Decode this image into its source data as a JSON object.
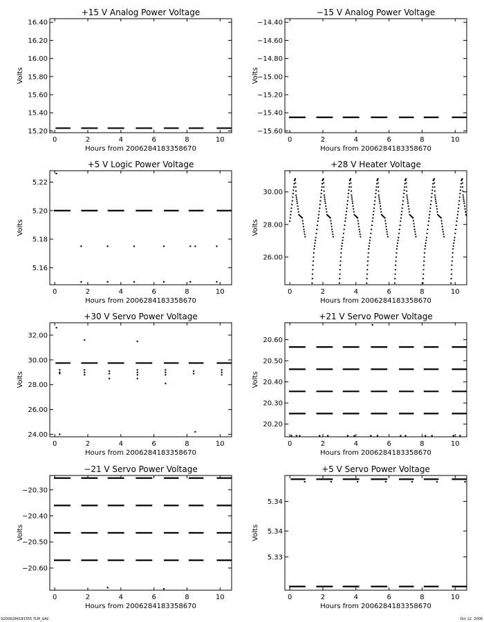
{
  "footer": {
    "left": "S2D06284183355.TLM_GAC",
    "right": "Oct 12, 2006"
  },
  "chart_data": [
    {
      "type": "scatter",
      "title": "+15 V Analog Power Voltage",
      "xlabel": "Hours from 2006284183358670",
      "ylabel": "Volts",
      "xlim": [
        -0.3,
        10.7
      ],
      "ylim": [
        15.18,
        16.44
      ],
      "xticks": [
        0,
        2,
        4,
        6,
        8,
        10
      ],
      "yticks": [
        15.2,
        15.4,
        15.6,
        15.8,
        16.0,
        16.2,
        16.4
      ],
      "ytick_labels": [
        "15.20",
        "15.40",
        "15.60",
        "15.80",
        "16.00",
        "16.20",
        "16.40"
      ],
      "grid": false,
      "segments": [
        {
          "x0": 0.05,
          "x1": 0.95,
          "y": 15.23
        },
        {
          "x0": 1.6,
          "x1": 2.6,
          "y": 15.23
        },
        {
          "x0": 3.2,
          "x1": 4.2,
          "y": 15.23
        },
        {
          "x0": 4.9,
          "x1": 5.9,
          "y": 15.23
        },
        {
          "x0": 6.6,
          "x1": 7.5,
          "y": 15.23
        },
        {
          "x0": 8.1,
          "x1": 9.0,
          "y": 15.23
        },
        {
          "x0": 9.8,
          "x1": 10.7,
          "y": 15.23
        }
      ],
      "points": []
    },
    {
      "type": "scatter",
      "title": "−15 V Analog Power Voltage",
      "xlabel": "Hours from 2006284183358670",
      "ylabel": "Volts",
      "xlim": [
        -0.3,
        10.7
      ],
      "ylim": [
        -15.62,
        -14.36
      ],
      "xticks": [
        0,
        2,
        4,
        6,
        8,
        10
      ],
      "yticks": [
        -15.6,
        -15.4,
        -15.2,
        -15.0,
        -14.8,
        -14.6,
        -14.4
      ],
      "ytick_labels": [
        "−15.60",
        "−15.40",
        "−15.20",
        "−15.00",
        "−14.80",
        "−14.60",
        "−14.40"
      ],
      "grid": false,
      "segments": [
        {
          "x0": -0.05,
          "x1": 0.95,
          "y": -15.45
        },
        {
          "x0": 1.6,
          "x1": 2.6,
          "y": -15.45
        },
        {
          "x0": 3.2,
          "x1": 4.2,
          "y": -15.45
        },
        {
          "x0": 4.9,
          "x1": 5.9,
          "y": -15.45
        },
        {
          "x0": 6.6,
          "x1": 7.5,
          "y": -15.45
        },
        {
          "x0": 8.1,
          "x1": 9.0,
          "y": -15.45
        },
        {
          "x0": 9.8,
          "x1": 10.7,
          "y": -15.45
        }
      ],
      "points": []
    },
    {
      "type": "scatter",
      "title": "+5 V Logic Power Voltage",
      "xlabel": "Hours from 2006284183358670",
      "ylabel": "Volts",
      "xlim": [
        -0.3,
        10.7
      ],
      "ylim": [
        5.148,
        5.228
      ],
      "xticks": [
        0,
        2,
        4,
        6,
        8,
        10
      ],
      "yticks": [
        5.16,
        5.18,
        5.2,
        5.22
      ],
      "ytick_labels": [
        "5.16",
        "5.18",
        "5.20",
        "5.22"
      ],
      "grid": false,
      "segments": [
        {
          "x0": -0.05,
          "x1": 0.95,
          "y": 5.2
        },
        {
          "x0": 1.6,
          "x1": 2.6,
          "y": 5.2
        },
        {
          "x0": 3.2,
          "x1": 4.2,
          "y": 5.2
        },
        {
          "x0": 4.9,
          "x1": 5.9,
          "y": 5.2
        },
        {
          "x0": 6.6,
          "x1": 7.5,
          "y": 5.2
        },
        {
          "x0": 8.1,
          "x1": 9.0,
          "y": 5.2
        },
        {
          "x0": 9.8,
          "x1": 10.7,
          "y": 5.2
        }
      ],
      "points": [
        {
          "x": 0.1,
          "y": 5.226
        },
        {
          "x": 1.6,
          "y": 5.175
        },
        {
          "x": 3.2,
          "y": 5.175
        },
        {
          "x": 4.8,
          "y": 5.175
        },
        {
          "x": 6.6,
          "y": 5.175
        },
        {
          "x": 8.2,
          "y": 5.175
        },
        {
          "x": 8.5,
          "y": 5.175
        },
        {
          "x": 9.8,
          "y": 5.175
        },
        {
          "x": 1.6,
          "y": 5.15
        },
        {
          "x": 3.2,
          "y": 5.15
        },
        {
          "x": 4.8,
          "y": 5.15
        },
        {
          "x": 6.6,
          "y": 5.15
        },
        {
          "x": 8.2,
          "y": 5.15
        },
        {
          "x": 9.8,
          "y": 5.15
        }
      ]
    },
    {
      "type": "scatter",
      "title": "+28 V Heater Voltage",
      "xlabel": "Hours from 2006284183358670",
      "ylabel": "Volts",
      "xlim": [
        -0.3,
        10.7
      ],
      "ylim": [
        24.3,
        31.3
      ],
      "xticks": [
        0,
        2,
        4,
        6,
        8,
        10
      ],
      "yticks": [
        26.0,
        28.0,
        30.0
      ],
      "ytick_labels": [
        "26.00",
        "28.00",
        "30.00"
      ],
      "grid": false,
      "segments": [],
      "cycle_starts": [
        0.0,
        1.7,
        3.35,
        5.0,
        6.7,
        8.4,
        10.1
      ],
      "cycle_curve": [
        {
          "dx": 0.0,
          "y": 28.2
        },
        {
          "dx": 0.1,
          "y": 29.0
        },
        {
          "dx": 0.2,
          "y": 29.9
        },
        {
          "dx": 0.28,
          "y": 30.7
        },
        {
          "dx": 0.33,
          "y": 30.8
        },
        {
          "dx": 0.38,
          "y": 29.8
        },
        {
          "dx": 0.45,
          "y": 29.3
        },
        {
          "dx": 0.55,
          "y": 28.6
        },
        {
          "dx": 0.75,
          "y": 28.4
        },
        {
          "dx": 0.85,
          "y": 27.7
        },
        {
          "dx": 0.95,
          "y": 27.1
        }
      ],
      "rise_curve": [
        {
          "dx": 0.0,
          "y": 24.4
        },
        {
          "dx": 0.05,
          "y": 25.5
        },
        {
          "dx": 0.12,
          "y": 26.5
        },
        {
          "dx": 0.22,
          "y": 27.2
        },
        {
          "dx": 0.35,
          "y": 28.2
        }
      ],
      "points": []
    },
    {
      "type": "scatter",
      "title": "+30 V Servo Power Voltage",
      "xlabel": "Hours from 2006284183358670",
      "ylabel": "Volts",
      "xlim": [
        -0.3,
        10.7
      ],
      "ylim": [
        23.8,
        33.0
      ],
      "xticks": [
        0,
        2,
        4,
        6,
        8,
        10
      ],
      "yticks": [
        24.0,
        26.0,
        28.0,
        30.0,
        32.0
      ],
      "ytick_labels": [
        "24.00",
        "26.00",
        "28.00",
        "30.00",
        "32.00"
      ],
      "grid": false,
      "segments": [
        {
          "x0": 0.05,
          "x1": 0.95,
          "y": 29.75
        },
        {
          "x0": 1.6,
          "x1": 2.6,
          "y": 29.75
        },
        {
          "x0": 3.2,
          "x1": 4.2,
          "y": 29.75
        },
        {
          "x0": 4.9,
          "x1": 5.9,
          "y": 29.75
        },
        {
          "x0": 6.6,
          "x1": 7.5,
          "y": 29.75
        },
        {
          "x0": 8.1,
          "x1": 9.0,
          "y": 29.75
        },
        {
          "x0": 9.8,
          "x1": 10.7,
          "y": 29.75
        }
      ],
      "points": [
        {
          "x": 0.1,
          "y": 32.6
        },
        {
          "x": 1.8,
          "y": 31.6
        },
        {
          "x": 5.0,
          "y": 31.5
        },
        {
          "x": 0.3,
          "y": 24.0
        },
        {
          "x": 8.5,
          "y": 24.2
        },
        {
          "x": 6.7,
          "y": 28.1
        },
        {
          "x": 3.3,
          "y": 28.5
        },
        {
          "x": 5.0,
          "y": 28.5
        },
        {
          "x": 0.3,
          "y": 29.2
        },
        {
          "x": 0.3,
          "y": 29.0
        },
        {
          "x": 0.3,
          "y": 28.9
        },
        {
          "x": 1.8,
          "y": 29.2
        },
        {
          "x": 1.8,
          "y": 29.0
        },
        {
          "x": 1.8,
          "y": 28.8
        },
        {
          "x": 3.3,
          "y": 29.1
        },
        {
          "x": 3.3,
          "y": 28.9
        },
        {
          "x": 5.0,
          "y": 29.2
        },
        {
          "x": 5.0,
          "y": 29.0
        },
        {
          "x": 5.0,
          "y": 28.8
        },
        {
          "x": 6.7,
          "y": 29.2
        },
        {
          "x": 6.7,
          "y": 29.0
        },
        {
          "x": 6.7,
          "y": 28.8
        },
        {
          "x": 8.4,
          "y": 29.1
        },
        {
          "x": 8.4,
          "y": 28.9
        },
        {
          "x": 10.1,
          "y": 29.2
        },
        {
          "x": 10.1,
          "y": 29.0
        },
        {
          "x": 10.1,
          "y": 28.8
        }
      ]
    },
    {
      "type": "scatter",
      "title": "+21 V Servo Power Voltage",
      "xlabel": "Hours from 2006284183358670",
      "ylabel": "Volts",
      "xlim": [
        -0.3,
        10.7
      ],
      "ylim": [
        20.14,
        20.68
      ],
      "xticks": [
        0,
        2,
        4,
        6,
        8,
        10
      ],
      "yticks": [
        20.2,
        20.3,
        20.4,
        20.5,
        20.6
      ],
      "ytick_labels": [
        "20.20",
        "20.30",
        "20.40",
        "20.50",
        "20.60"
      ],
      "grid": false,
      "segments": [
        {
          "x0": -0.05,
          "x1": 0.95,
          "y": 20.565
        },
        {
          "x0": -0.05,
          "x1": 0.95,
          "y": 20.46
        },
        {
          "x0": -0.05,
          "x1": 0.95,
          "y": 20.355
        },
        {
          "x0": -0.05,
          "x1": 0.95,
          "y": 20.25
        },
        {
          "x0": 1.6,
          "x1": 2.6,
          "y": 20.565
        },
        {
          "x0": 1.6,
          "x1": 2.6,
          "y": 20.46
        },
        {
          "x0": 1.6,
          "x1": 2.6,
          "y": 20.355
        },
        {
          "x0": 1.6,
          "x1": 2.6,
          "y": 20.25
        },
        {
          "x0": 3.2,
          "x1": 4.2,
          "y": 20.565
        },
        {
          "x0": 3.2,
          "x1": 4.2,
          "y": 20.46
        },
        {
          "x0": 3.2,
          "x1": 4.2,
          "y": 20.355
        },
        {
          "x0": 3.2,
          "x1": 4.2,
          "y": 20.25
        },
        {
          "x0": 4.9,
          "x1": 5.9,
          "y": 20.565
        },
        {
          "x0": 4.9,
          "x1": 5.9,
          "y": 20.46
        },
        {
          "x0": 4.9,
          "x1": 5.9,
          "y": 20.355
        },
        {
          "x0": 4.9,
          "x1": 5.9,
          "y": 20.25
        },
        {
          "x0": 6.6,
          "x1": 7.5,
          "y": 20.565
        },
        {
          "x0": 6.6,
          "x1": 7.5,
          "y": 20.46
        },
        {
          "x0": 6.6,
          "x1": 7.5,
          "y": 20.355
        },
        {
          "x0": 6.6,
          "x1": 7.5,
          "y": 20.25
        },
        {
          "x0": 8.1,
          "x1": 9.0,
          "y": 20.565
        },
        {
          "x0": 8.1,
          "x1": 9.0,
          "y": 20.46
        },
        {
          "x0": 8.1,
          "x1": 9.0,
          "y": 20.355
        },
        {
          "x0": 8.1,
          "x1": 9.0,
          "y": 20.25
        },
        {
          "x0": 9.8,
          "x1": 10.7,
          "y": 20.565
        },
        {
          "x0": 9.8,
          "x1": 10.7,
          "y": 20.46
        },
        {
          "x0": 9.8,
          "x1": 10.7,
          "y": 20.355
        },
        {
          "x0": 9.8,
          "x1": 10.7,
          "y": 20.25
        }
      ],
      "points": [
        {
          "x": 5.0,
          "y": 20.67
        },
        {
          "x": 0.1,
          "y": 20.145
        },
        {
          "x": 0.4,
          "y": 20.145
        },
        {
          "x": 0.6,
          "y": 20.145
        },
        {
          "x": 1.8,
          "y": 20.145
        },
        {
          "x": 2.3,
          "y": 20.145
        },
        {
          "x": 3.5,
          "y": 20.145
        },
        {
          "x": 3.9,
          "y": 20.145
        },
        {
          "x": 4.9,
          "y": 20.145
        },
        {
          "x": 5.3,
          "y": 20.145
        },
        {
          "x": 6.7,
          "y": 20.145
        },
        {
          "x": 7.0,
          "y": 20.145
        },
        {
          "x": 8.2,
          "y": 20.145
        },
        {
          "x": 8.6,
          "y": 20.145
        },
        {
          "x": 9.9,
          "y": 20.145
        },
        {
          "x": 10.3,
          "y": 20.145
        }
      ]
    },
    {
      "type": "scatter",
      "title": "−21 V Servo Power Voltage",
      "xlabel": "Hours from 2006284183358670",
      "ylabel": "Volts",
      "xlim": [
        -0.3,
        10.7
      ],
      "ylim": [
        -20.685,
        -20.245
      ],
      "xticks": [
        0,
        2,
        4,
        6,
        8,
        10
      ],
      "yticks": [
        -20.6,
        -20.5,
        -20.4,
        -20.3
      ],
      "ytick_labels": [
        "−20.60",
        "−20.50",
        "−20.40",
        "−20.30"
      ],
      "grid": false,
      "segments": [
        {
          "x0": -0.05,
          "x1": 0.95,
          "y": -20.255
        },
        {
          "x0": -0.05,
          "x1": 0.95,
          "y": -20.36
        },
        {
          "x0": -0.05,
          "x1": 0.95,
          "y": -20.465
        },
        {
          "x0": -0.05,
          "x1": 0.95,
          "y": -20.57
        },
        {
          "x0": 1.6,
          "x1": 2.6,
          "y": -20.255
        },
        {
          "x0": 1.6,
          "x1": 2.6,
          "y": -20.36
        },
        {
          "x0": 1.6,
          "x1": 2.6,
          "y": -20.465
        },
        {
          "x0": 1.6,
          "x1": 2.6,
          "y": -20.57
        },
        {
          "x0": 3.2,
          "x1": 4.2,
          "y": -20.255
        },
        {
          "x0": 3.2,
          "x1": 4.2,
          "y": -20.36
        },
        {
          "x0": 3.2,
          "x1": 4.2,
          "y": -20.465
        },
        {
          "x0": 3.2,
          "x1": 4.2,
          "y": -20.57
        },
        {
          "x0": 4.9,
          "x1": 5.9,
          "y": -20.255
        },
        {
          "x0": 4.9,
          "x1": 5.9,
          "y": -20.36
        },
        {
          "x0": 4.9,
          "x1": 5.9,
          "y": -20.465
        },
        {
          "x0": 4.9,
          "x1": 5.9,
          "y": -20.57
        },
        {
          "x0": 6.6,
          "x1": 7.5,
          "y": -20.255
        },
        {
          "x0": 6.6,
          "x1": 7.5,
          "y": -20.36
        },
        {
          "x0": 6.6,
          "x1": 7.5,
          "y": -20.465
        },
        {
          "x0": 6.6,
          "x1": 7.5,
          "y": -20.57
        },
        {
          "x0": 8.1,
          "x1": 9.0,
          "y": -20.255
        },
        {
          "x0": 8.1,
          "x1": 9.0,
          "y": -20.36
        },
        {
          "x0": 8.1,
          "x1": 9.0,
          "y": -20.465
        },
        {
          "x0": 8.1,
          "x1": 9.0,
          "y": -20.57
        },
        {
          "x0": 9.8,
          "x1": 10.7,
          "y": -20.255
        },
        {
          "x0": 9.8,
          "x1": 10.7,
          "y": -20.36
        },
        {
          "x0": 9.8,
          "x1": 10.7,
          "y": -20.465
        },
        {
          "x0": 9.8,
          "x1": 10.7,
          "y": -20.57
        }
      ],
      "points": [
        {
          "x": 3.2,
          "y": -20.675
        },
        {
          "x": 6.6,
          "y": -20.68
        }
      ]
    },
    {
      "type": "scatter",
      "title": "+5 V Servo Power Voltage",
      "xlabel": "Hours from 2006284183358670",
      "ylabel": "Volts",
      "xlim": [
        -0.3,
        10.7
      ],
      "ylim": [
        5.3195,
        5.3505
      ],
      "xticks": [
        0,
        2,
        4,
        6,
        8,
        10
      ],
      "ytick_values_note": "",
      "yticks": [
        5.3285,
        5.3355,
        5.3435
      ],
      "ytick_labels": [
        "5.33",
        "5.34",
        "5.34"
      ],
      "grid": false,
      "segments": [
        {
          "x0": 0.05,
          "x1": 0.95,
          "y": 5.3495
        },
        {
          "x0": 1.6,
          "x1": 2.6,
          "y": 5.3495
        },
        {
          "x0": 3.2,
          "x1": 4.2,
          "y": 5.3495
        },
        {
          "x0": 4.9,
          "x1": 5.9,
          "y": 5.3495
        },
        {
          "x0": 6.6,
          "x1": 7.5,
          "y": 5.3495
        },
        {
          "x0": 8.1,
          "x1": 9.0,
          "y": 5.3495
        },
        {
          "x0": 9.8,
          "x1": 10.7,
          "y": 5.3495
        },
        {
          "x0": -0.05,
          "x1": 0.95,
          "y": 5.3205
        },
        {
          "x0": 1.6,
          "x1": 2.6,
          "y": 5.3205
        },
        {
          "x0": 3.2,
          "x1": 4.2,
          "y": 5.3205
        },
        {
          "x0": 4.9,
          "x1": 5.9,
          "y": 5.3205
        },
        {
          "x0": 6.6,
          "x1": 7.5,
          "y": 5.3205
        },
        {
          "x0": 8.1,
          "x1": 9.0,
          "y": 5.3205
        },
        {
          "x0": 9.8,
          "x1": 10.7,
          "y": 5.3205
        }
      ],
      "points": [
        {
          "x": 0.9,
          "y": 5.3488
        },
        {
          "x": 2.5,
          "y": 5.3488
        },
        {
          "x": 4.1,
          "y": 5.3488
        },
        {
          "x": 5.8,
          "y": 5.3488
        },
        {
          "x": 7.4,
          "y": 5.3488
        },
        {
          "x": 8.9,
          "y": 5.3488
        },
        {
          "x": 10.6,
          "y": 5.3488
        }
      ]
    }
  ]
}
